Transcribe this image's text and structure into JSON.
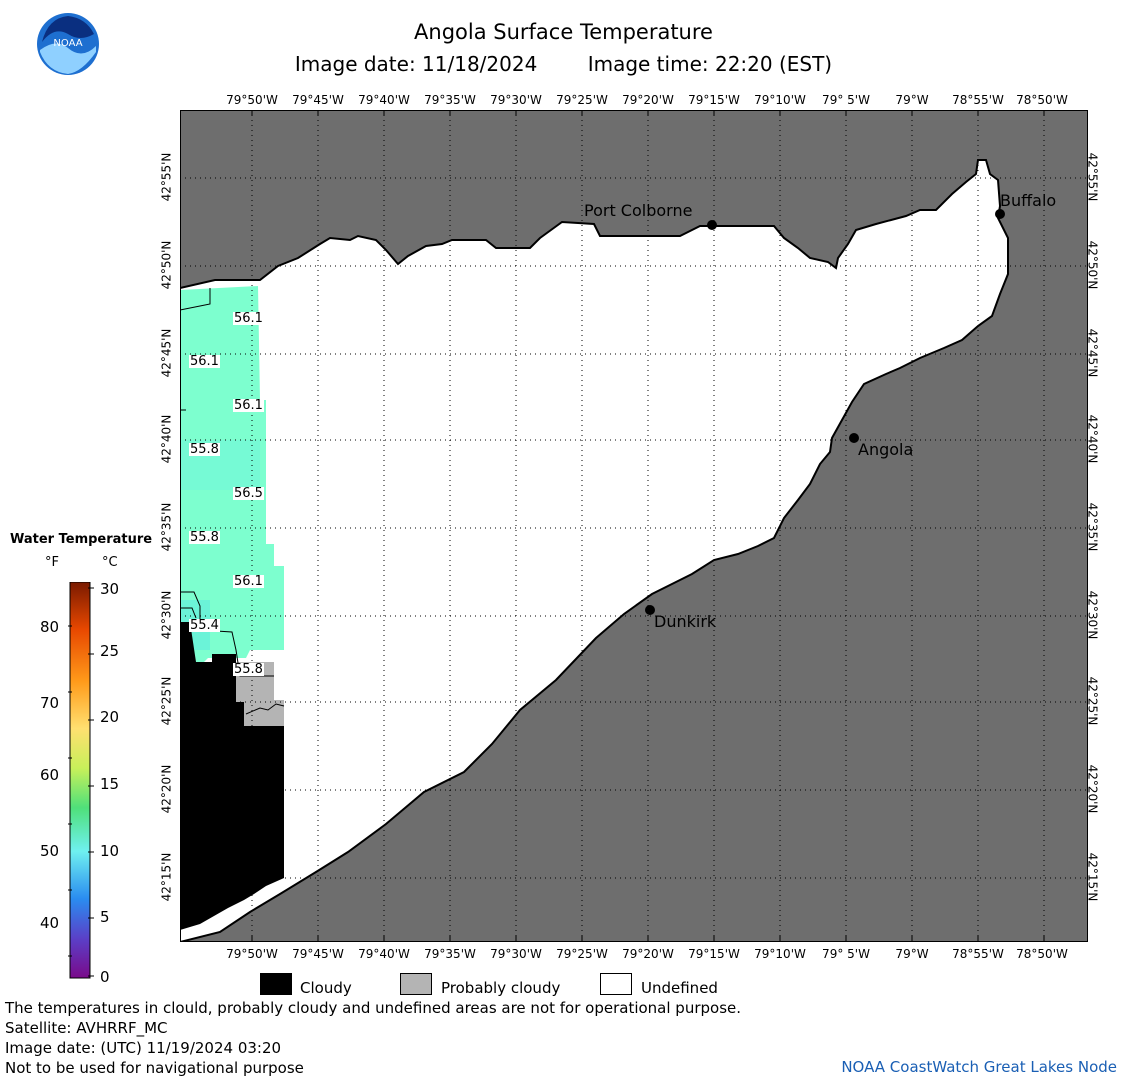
{
  "header": {
    "title": "Angola Surface Temperature",
    "image_date": "Image date: 11/18/2024",
    "image_time": "Image time: 22:20 (EST)"
  },
  "logo": {
    "text": "NOAA"
  },
  "map": {
    "lon_labels": [
      "79°50'W",
      "79°45'W",
      "79°40'W",
      "79°35'W",
      "79°30'W",
      "79°25'W",
      "79°20'W",
      "79°15'W",
      "79°10'W",
      "79° 5'W",
      "79°W",
      "78°55'W",
      "78°50'W"
    ],
    "lat_labels": [
      "42°55'N",
      "42°50'N",
      "42°45'N",
      "42°40'N",
      "42°35'N",
      "42°30'N",
      "42°25'N",
      "42°20'N",
      "42°15'N"
    ],
    "cities": [
      {
        "name": "Port Colborne"
      },
      {
        "name": "Buffalo"
      },
      {
        "name": "Angola"
      },
      {
        "name": "Dunkirk"
      }
    ],
    "isotherms": [
      "56.1",
      "56.1",
      "56.1",
      "55.8",
      "56.5",
      "55.8",
      "56.1",
      "55.4",
      "55.8"
    ],
    "colors": {
      "land": "#6e6e6e",
      "undefined": "#ffffff",
      "cloudy": "#000000",
      "probably_cloudy": "#b4b4b4",
      "water": "#7fffd4"
    }
  },
  "legend": {
    "title": "Water Temperature",
    "unit_f": "°F",
    "unit_c": "°C",
    "f_ticks": [
      "80",
      "70",
      "60",
      "50",
      "40"
    ],
    "c_ticks": [
      "30",
      "25",
      "20",
      "15",
      "10",
      "5",
      "0"
    ],
    "keys": [
      {
        "label": "Cloudy",
        "color": "#000000"
      },
      {
        "label": "Probably cloudy",
        "color": "#b4b4b4"
      },
      {
        "label": "Undefined",
        "color": "#ffffff"
      }
    ]
  },
  "footer": {
    "note": "The temperatures in clould, probably cloudy and undefined areas are not for operational purpose.",
    "satellite": "Satellite: AVHRRF_MC",
    "utc_date": "Image date: (UTC) 11/19/2024  03:20",
    "nav": "Not to be used for navigational purpose",
    "credit": "NOAA CoastWatch Great Lakes Node"
  }
}
